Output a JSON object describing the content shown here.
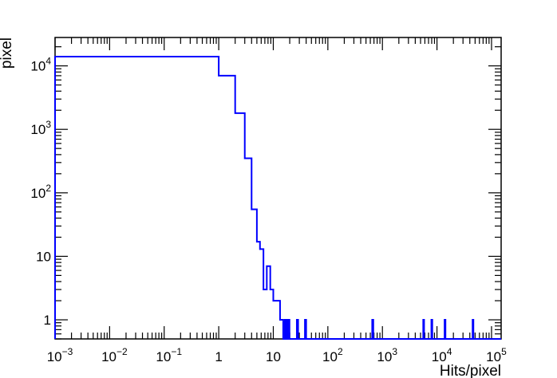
{
  "chart_data": {
    "type": "histogram",
    "xlabel": "Hits/pixel",
    "ylabel": "pixel",
    "xscale": "log",
    "yscale": "log",
    "xlim": [
      0.001,
      150000
    ],
    "ylim": [
      0.5,
      28000
    ],
    "grid": false,
    "line_color": "#0000ff",
    "x_tick_labels": [
      {
        "value": 0.001,
        "base": "10",
        "exp": "−3"
      },
      {
        "value": 0.01,
        "base": "10",
        "exp": "−2"
      },
      {
        "value": 0.1,
        "base": "10",
        "exp": "−1"
      },
      {
        "value": 1,
        "base": "1",
        "exp": ""
      },
      {
        "value": 10,
        "base": "10",
        "exp": ""
      },
      {
        "value": 100,
        "base": "10",
        "exp": "2"
      },
      {
        "value": 1000,
        "base": "10",
        "exp": "3"
      },
      {
        "value": 10000,
        "base": "10",
        "exp": "4"
      },
      {
        "value": 100000,
        "base": "10",
        "exp": "5"
      }
    ],
    "y_tick_labels": [
      {
        "value": 1,
        "base": "1",
        "exp": ""
      },
      {
        "value": 10,
        "base": "10",
        "exp": ""
      },
      {
        "value": 100,
        "base": "10",
        "exp": "2"
      },
      {
        "value": 1000,
        "base": "10",
        "exp": "3"
      },
      {
        "value": 10000,
        "base": "10",
        "exp": "4"
      }
    ],
    "bins": [
      {
        "x0": 0.001,
        "x1": 1,
        "y": 14000
      },
      {
        "x0": 1,
        "x1": 2,
        "y": 7000
      },
      {
        "x0": 2,
        "x1": 3,
        "y": 1800
      },
      {
        "x0": 3,
        "x1": 4,
        "y": 350
      },
      {
        "x0": 4,
        "x1": 5,
        "y": 55
      },
      {
        "x0": 5,
        "x1": 5.7,
        "y": 17
      },
      {
        "x0": 5.7,
        "x1": 6.6,
        "y": 13
      },
      {
        "x0": 6.6,
        "x1": 7.6,
        "y": 3
      },
      {
        "x0": 7.6,
        "x1": 8.8,
        "y": 7
      },
      {
        "x0": 8.8,
        "x1": 10,
        "y": 3
      },
      {
        "x0": 10,
        "x1": 13.3,
        "y": 2
      },
      {
        "x0": 13.3,
        "x1": 15.2,
        "y": 1
      },
      {
        "x0": 15.2,
        "x1": 16.3,
        "y": 0.5
      },
      {
        "x0": 16.3,
        "x1": 17.3,
        "y": 1
      },
      {
        "x0": 17.3,
        "x1": 18.5,
        "y": 0.5
      },
      {
        "x0": 18.5,
        "x1": 19.8,
        "y": 1
      },
      {
        "x0": 19.8,
        "x1": 27,
        "y": 0.5
      },
      {
        "x0": 27,
        "x1": 28.5,
        "y": 1
      },
      {
        "x0": 28.5,
        "x1": 38,
        "y": 0.5
      },
      {
        "x0": 38,
        "x1": 40,
        "y": 1
      },
      {
        "x0": 40,
        "x1": 650,
        "y": 0.5
      },
      {
        "x0": 650,
        "x1": 680,
        "y": 1
      },
      {
        "x0": 680,
        "x1": 5600,
        "y": 0.5
      },
      {
        "x0": 5600,
        "x1": 5800,
        "y": 1
      },
      {
        "x0": 5800,
        "x1": 7900,
        "y": 0.5
      },
      {
        "x0": 7900,
        "x1": 8200,
        "y": 1
      },
      {
        "x0": 8200,
        "x1": 13800,
        "y": 0.5
      },
      {
        "x0": 13800,
        "x1": 14300,
        "y": 1
      },
      {
        "x0": 14300,
        "x1": 45000,
        "y": 0.5
      },
      {
        "x0": 45000,
        "x1": 46500,
        "y": 1
      },
      {
        "x0": 46500,
        "x1": 150000,
        "y": 0.5
      }
    ]
  }
}
